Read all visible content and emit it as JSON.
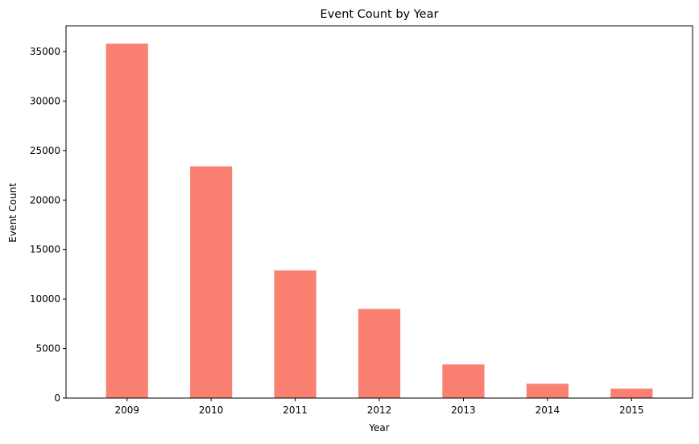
{
  "chart_data": {
    "type": "bar",
    "title": "Event Count by Year",
    "xlabel": "Year",
    "ylabel": "Event Count",
    "categories": [
      "2009",
      "2010",
      "2011",
      "2012",
      "2013",
      "2014",
      "2015"
    ],
    "values": [
      35800,
      23400,
      12900,
      9000,
      3400,
      1450,
      950
    ],
    "ylim": [
      0,
      37600
    ],
    "yticks": [
      0,
      5000,
      10000,
      15000,
      20000,
      25000,
      30000,
      35000
    ],
    "grid": false,
    "legend": "none",
    "bar_color": "#fa8072"
  }
}
